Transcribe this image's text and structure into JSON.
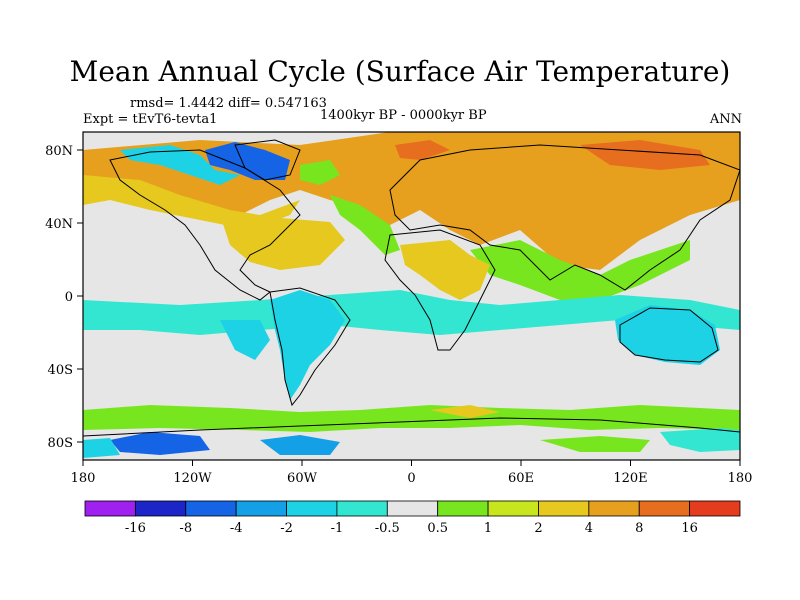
{
  "title": "Mean Annual Cycle (Surface Air Temperature)",
  "stats": "rmsd= 1.4442 diff= 0.547163",
  "experiment": "Expt = tEvT6-tevta1",
  "period": "1400kyr BP - 0000kyr BP",
  "season": "ANN",
  "map": {
    "x_ticks": [
      "180",
      "120W",
      "60W",
      "0",
      "60E",
      "120E",
      "180"
    ],
    "y_ticks": [
      "80N",
      "40N",
      "0",
      "40S",
      "80S"
    ]
  },
  "colorbar": {
    "colors": [
      "#a020f0",
      "#1c26c8",
      "#1564e6",
      "#14a0e6",
      "#1ed2e6",
      "#32e6d2",
      "#e6e6e6",
      "#78e61e",
      "#c8e61e",
      "#e6c81e",
      "#e6a01e",
      "#e66e1e",
      "#e63c1e"
    ],
    "labels": [
      "-16",
      "-8",
      "-4",
      "-2",
      "-1",
      "-0.5",
      "0.5",
      "1",
      "2",
      "4",
      "8",
      "16"
    ]
  },
  "regions": [
    {
      "name": "tropical-ocean-band",
      "level": 6
    },
    {
      "name": "siberia-warm",
      "level": 9
    },
    {
      "name": "north-america-warm",
      "level": 9
    },
    {
      "name": "arctic-warm",
      "level": 10
    },
    {
      "name": "greenland-cold",
      "level": 2
    },
    {
      "name": "south-america-cool",
      "level": 4
    },
    {
      "name": "australia-cool",
      "level": 4
    },
    {
      "name": "southern-ocean-warm",
      "level": 8
    },
    {
      "name": "antarctica-cold",
      "level": 2
    }
  ]
}
